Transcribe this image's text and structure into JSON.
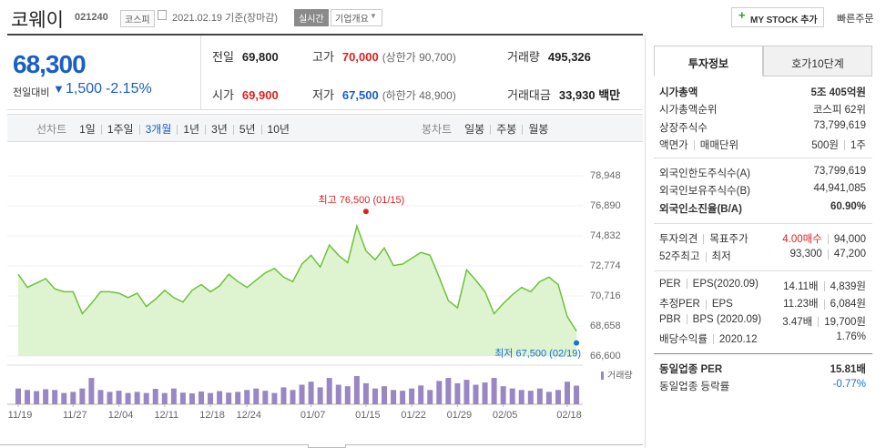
{
  "header": {
    "name": "코웨이",
    "code": "021240",
    "market": "코스피",
    "date": "2021.02.19 기준(장마감)",
    "realtime": "실시간",
    "company_info": "기업개요",
    "my_stock": "MY STOCK 추가",
    "quick_order": "빠른주문"
  },
  "quote": {
    "price": "68,300",
    "change_label": "전일대비",
    "change": "1,500",
    "change_rate": "-2.15%",
    "items": [
      {
        "label": "전일",
        "value": "69,800"
      },
      {
        "label": "고가",
        "value": "70,000",
        "note": "(상한가 90,700)",
        "color": "#e01f1f"
      },
      {
        "label": "거래량",
        "value": "495,326"
      },
      {
        "label": "시가",
        "value": "69,900",
        "color": "#e01f1f"
      },
      {
        "label": "저가",
        "value": "67,500",
        "note": "(하한가 48,900)",
        "color": "#1a5fc4"
      },
      {
        "label": "거래대금",
        "value": "33,930 백만"
      }
    ]
  },
  "periods": {
    "line_label": "선차트",
    "line": [
      "1일",
      "1주일",
      "3개월",
      "1년",
      "3년",
      "5년",
      "10년"
    ],
    "selected": 2,
    "candle_label": "봉차트",
    "candle": [
      "일봉",
      "주봉",
      "월봉"
    ]
  },
  "chart_data": [
    {
      "type": "area",
      "color": "#6cc23a",
      "fill": "#def3cf",
      "grid": true,
      "values": [
        72200,
        71300,
        71600,
        71900,
        71200,
        71000,
        71000,
        69500,
        70200,
        71000,
        71000,
        70900,
        70600,
        70900,
        70000,
        70500,
        71100,
        70600,
        70300,
        71100,
        71500,
        71000,
        71400,
        72200,
        71700,
        71300,
        71800,
        72300,
        72600,
        72000,
        71700,
        72900,
        73500,
        72700,
        74200,
        73500,
        73000,
        75500,
        73800,
        73200,
        74000,
        72800,
        72900,
        73300,
        73700,
        73500,
        72000,
        70400,
        69900,
        72500,
        71800,
        71000,
        69500,
        70200,
        70800,
        71300,
        71000,
        71700,
        72000,
        71500,
        69300,
        68300
      ],
      "ylim": [
        66600,
        78948
      ],
      "yticks": [
        {
          "value": 66600,
          "label": "66,600"
        },
        {
          "value": 68658,
          "label": "68,658"
        },
        {
          "value": 70716,
          "label": "70,716"
        },
        {
          "value": 72774,
          "label": "72,774"
        },
        {
          "value": 74832,
          "label": "74,832"
        },
        {
          "value": 76890,
          "label": "76,890"
        },
        {
          "value": 78948,
          "label": "78,948"
        }
      ],
      "annotations": [
        {
          "label": "최고 76,500 (01/15)",
          "value": 76500,
          "index": 38,
          "color": "#e01f1f",
          "position": "above"
        },
        {
          "label": "최저 67,500 (02/19)",
          "value": 67500,
          "index": 61,
          "color": "#1a6fd6",
          "position": "below"
        }
      ]
    },
    {
      "type": "bar",
      "color": "#9887c4",
      "series": [
        {
          "name": "거래량",
          "color": "#9887c4",
          "values": [
            420000,
            380000,
            350000,
            400000,
            380000,
            300000,
            330000,
            420000,
            700000,
            380000,
            330000,
            360000,
            300000,
            330000,
            300000,
            410000,
            300000,
            420000,
            310000,
            290000,
            340000,
            300000,
            350000,
            310000,
            330000,
            380000,
            420000,
            360000,
            300000,
            450000,
            380000,
            520000,
            600000,
            450000,
            700000,
            520000,
            480000,
            750000,
            560000,
            420000,
            480000,
            380000,
            360000,
            420000,
            500000,
            380000,
            620000,
            700000,
            560000,
            650000,
            520000,
            580000,
            700000,
            480000,
            420000,
            380000,
            360000,
            420000,
            330000,
            380000,
            600000,
            495326
          ]
        }
      ],
      "categories": [
        "11/19",
        null,
        null,
        null,
        null,
        null,
        "11/27",
        null,
        null,
        null,
        null,
        "12/04",
        null,
        null,
        null,
        null,
        "12/11",
        null,
        null,
        null,
        null,
        "12/18",
        null,
        null,
        null,
        "12/24",
        null,
        null,
        null,
        null,
        null,
        null,
        "01/07",
        null,
        null,
        null,
        null,
        null,
        "01/15",
        null,
        null,
        null,
        null,
        "01/22",
        null,
        null,
        null,
        null,
        "01/29",
        null,
        null,
        null,
        null,
        "02/05",
        null,
        null,
        null,
        null,
        null,
        null,
        "02/18",
        null
      ]
    }
  ],
  "panel": {
    "tabs": [
      "투자정보",
      "호가10단계"
    ],
    "active_tab": 0,
    "sections": [
      [
        {
          "label": [
            "시가총액"
          ],
          "value": [
            "5조 405억원"
          ],
          "bold": true
        },
        {
          "label": [
            "시가총액순위"
          ],
          "value": [
            "코스피 62위"
          ]
        },
        {
          "label": [
            "상장주식수"
          ],
          "value": [
            "73,799,619"
          ]
        },
        {
          "label": [
            "액면가",
            "매매단위"
          ],
          "value": [
            "500원",
            "1주"
          ]
        }
      ],
      [
        {
          "label": [
            "외국인한도주식수(A)"
          ],
          "value": [
            "73,799,619"
          ]
        },
        {
          "label": [
            "외국인보유주식수(B)"
          ],
          "value": [
            "44,941,085"
          ]
        },
        {
          "label": [
            "외국인소진율(B/A)"
          ],
          "value": [
            "60.90%"
          ],
          "bold": true
        }
      ],
      [
        {
          "label": [
            "투자의견",
            "목표주가"
          ],
          "value": [
            "4.00매수",
            "94,000"
          ],
          "value_color": "#e01f1f"
        },
        {
          "label": [
            "52주최고",
            "최저"
          ],
          "value": [
            "93,300",
            "47,200"
          ]
        }
      ],
      [
        {
          "label": [
            "PER",
            "EPS(2020.09)"
          ],
          "value": [
            "14.11배",
            "4,839원"
          ]
        },
        {
          "label": [
            "추정PER",
            "EPS"
          ],
          "value": [
            "11.23배",
            "6,084원"
          ]
        },
        {
          "label": [
            "PBR",
            "BPS (2020.09)"
          ],
          "value": [
            "3.47배",
            "19,700원"
          ]
        },
        {
          "label": [
            "배당수익률",
            "2020.12"
          ],
          "value": [
            "1.76%"
          ]
        }
      ],
      [
        {
          "label": [
            "동일업종 PER"
          ],
          "value": [
            "15.81배"
          ],
          "bold": true
        },
        {
          "label": [
            "동일업종 등락률"
          ],
          "value": [
            "-0.77%"
          ],
          "value_color": "#1a6fd6"
        }
      ]
    ]
  }
}
